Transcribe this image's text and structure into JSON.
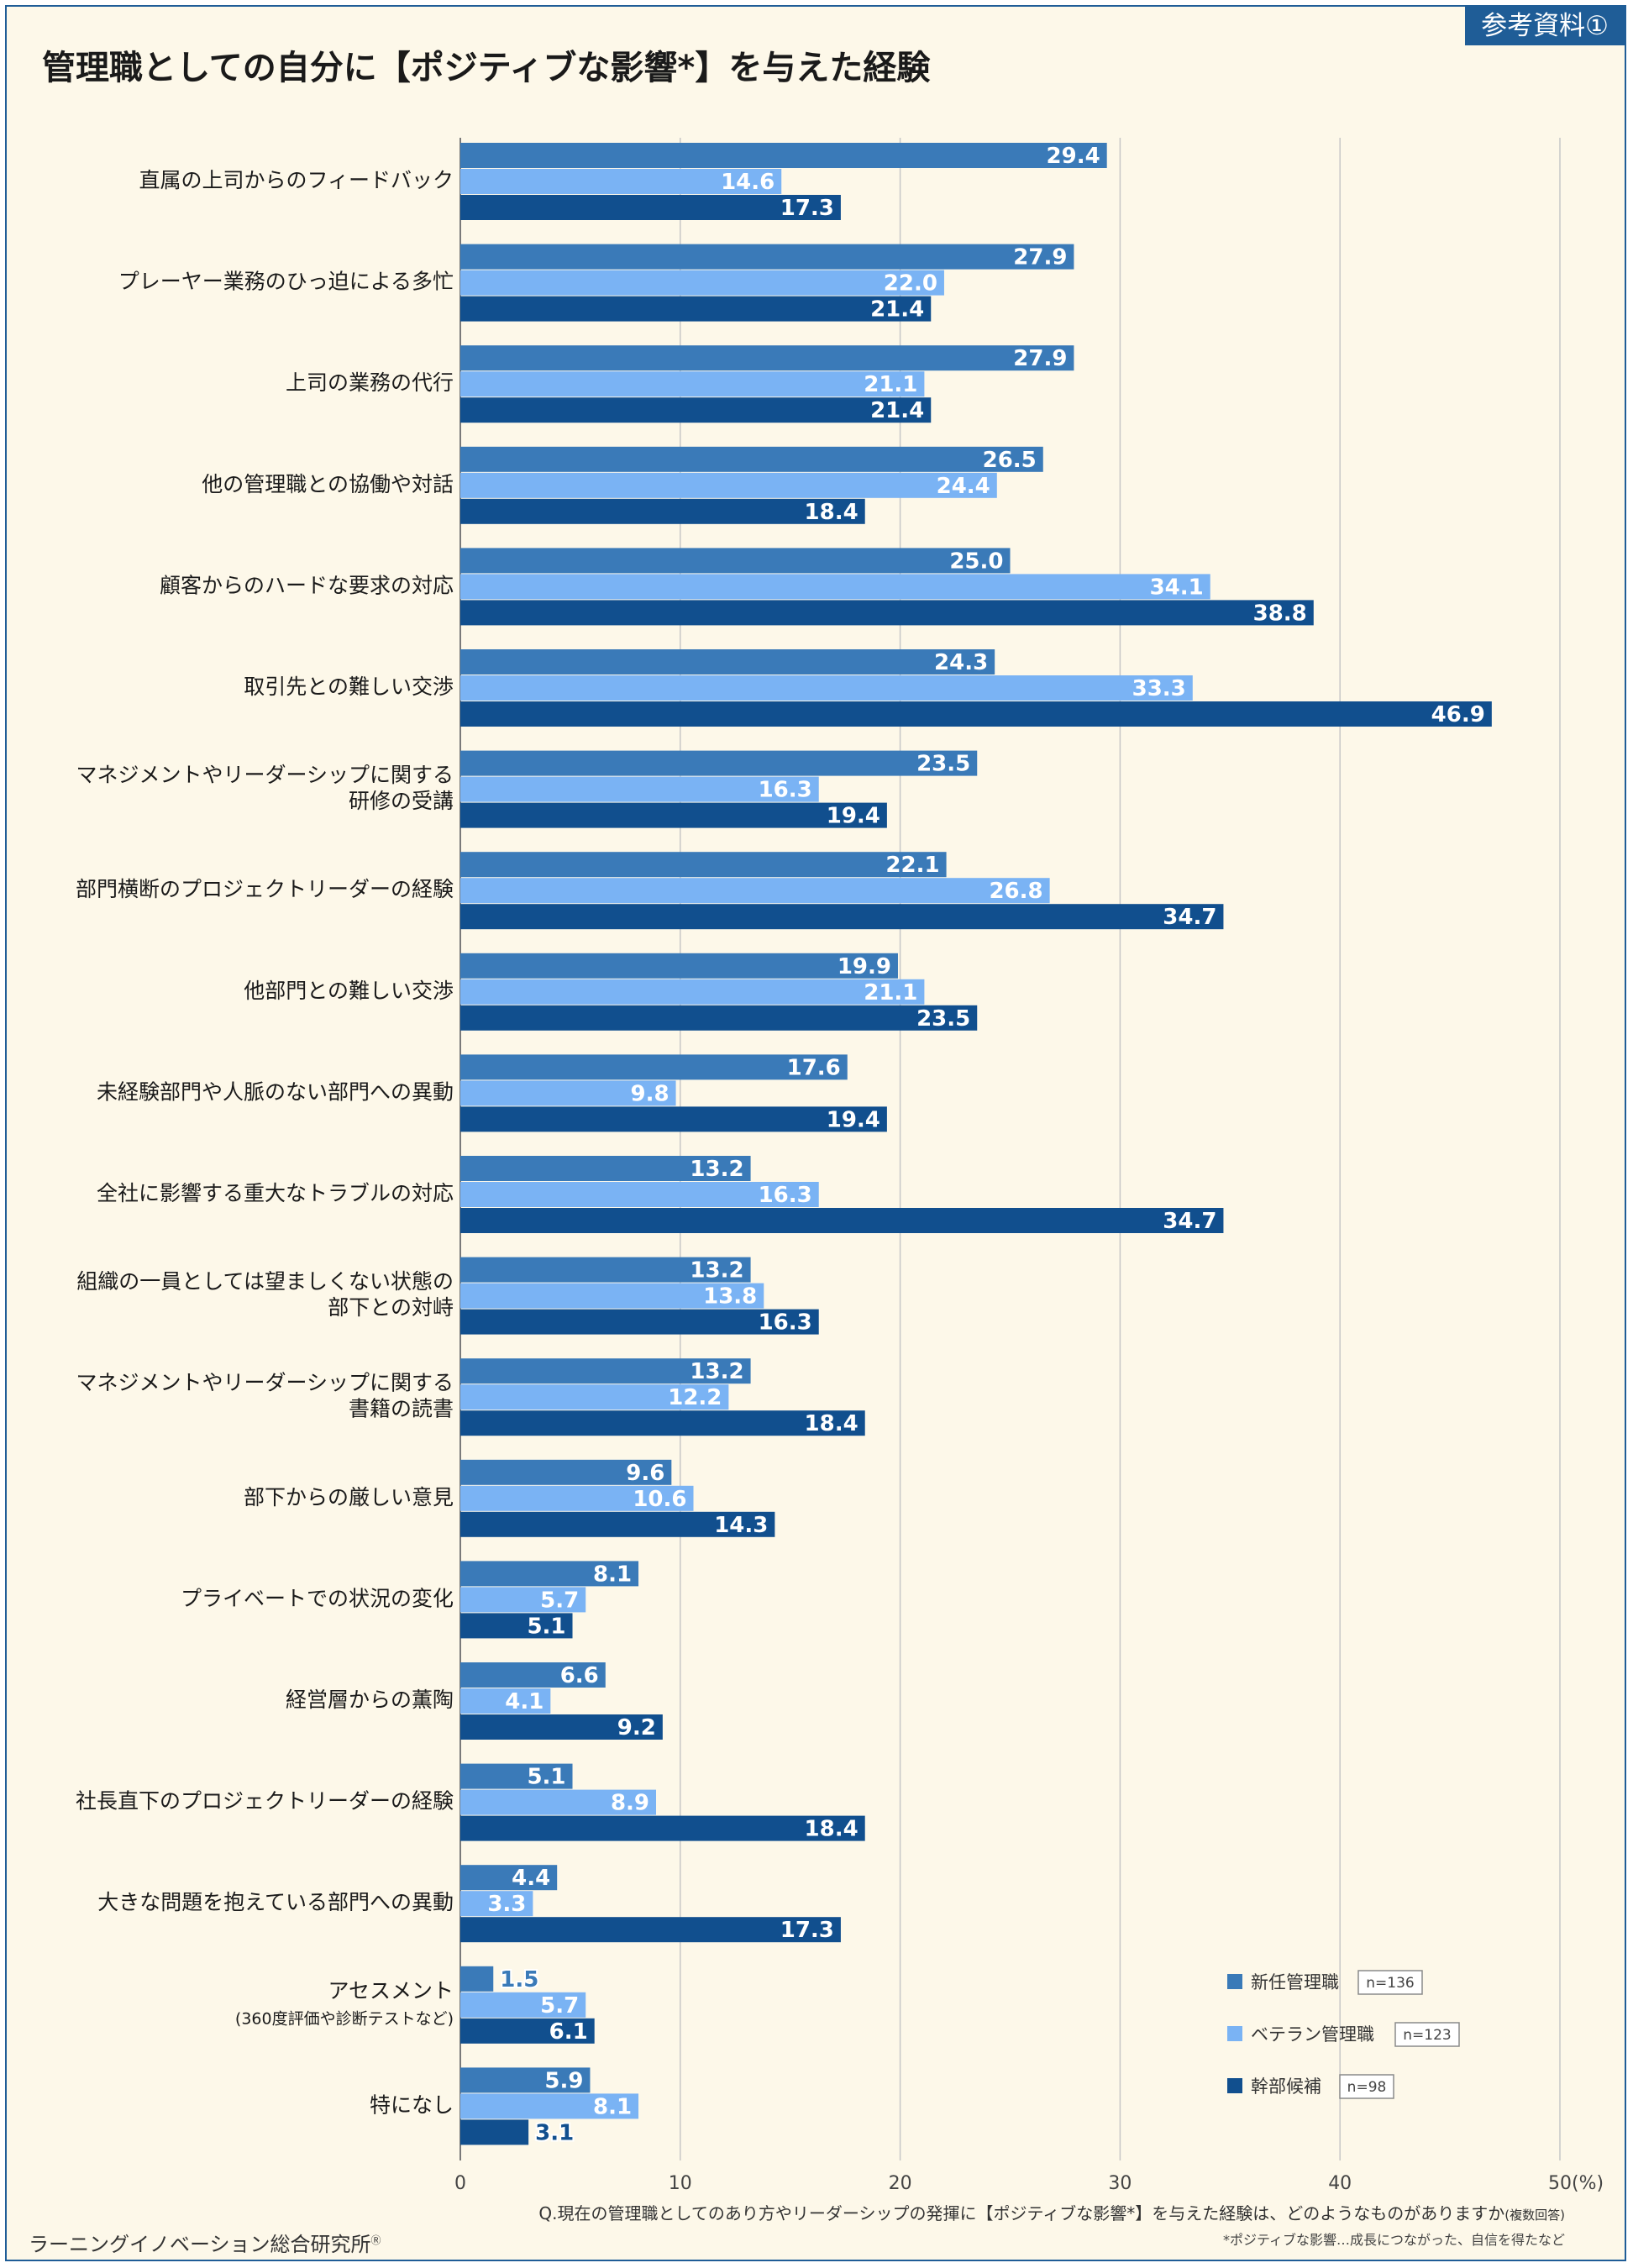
{
  "badge": "参考資料①",
  "title": "管理職としての自分に【ポジティブな影響*】を与えた経験",
  "colors": {
    "s1": "#3a7ab8",
    "s2": "#7ab3f4",
    "s3": "#114f8e",
    "grid": "#c7c7c7",
    "axis": "#7a7a7a",
    "background": "#fdf8e9",
    "accent": "#1f5d97"
  },
  "legend": {
    "items": [
      {
        "name": "新任管理職",
        "n": "n=136"
      },
      {
        "name": "ベテラン管理職",
        "n": "n=123"
      },
      {
        "name": "幹部候補",
        "n": "n=98"
      }
    ]
  },
  "question": "Q.現在の管理職としてのあり方やリーダーシップの発揮に【ポジティブな影響*】を与えた経験は、どのようなものがありますか",
  "question_note": "(複数回答)",
  "footnote": "*ポジティブな影響…成長につながった、自信を得たなど",
  "company": "ラーニングイノベーション総合研究所",
  "company_mark": "Ⓡ",
  "chart_data": {
    "type": "bar",
    "orientation": "horizontal",
    "unit": "%",
    "xlim": [
      0,
      50
    ],
    "ticks": [
      "0",
      "10",
      "20",
      "30",
      "40",
      "50(%)"
    ],
    "grid": true,
    "legend_position": "bottom-right",
    "categories": [
      [
        "直属の上司からのフィードバック"
      ],
      [
        "プレーヤー業務のひっ迫による多忙"
      ],
      [
        "上司の業務の代行"
      ],
      [
        "他の管理職との協働や対話"
      ],
      [
        "顧客からのハードな要求の対応"
      ],
      [
        "取引先との難しい交渉"
      ],
      [
        "マネジメントやリーダーシップに関する",
        "研修の受講"
      ],
      [
        "部門横断のプロジェクトリーダーの経験"
      ],
      [
        "他部門との難しい交渉"
      ],
      [
        "未経験部門や人脈のない部門への異動"
      ],
      [
        "全社に影響する重大なトラブルの対応"
      ],
      [
        "組織の一員としては望ましくない状態の",
        "部下との対峙"
      ],
      [
        "マネジメントやリーダーシップに関する",
        "書籍の読書"
      ],
      [
        "部下からの厳しい意見"
      ],
      [
        "プライベートでの状況の変化"
      ],
      [
        "経営層からの薫陶"
      ],
      [
        "社長直下のプロジェクトリーダーの経験"
      ],
      [
        "大きな問題を抱えている部門への異動"
      ],
      [
        "アセスメント",
        "(360度評価や診断テストなど)"
      ],
      [
        "特になし"
      ]
    ],
    "series": [
      {
        "name": "新任管理職",
        "values": [
          29.4,
          27.9,
          27.9,
          26.5,
          25.0,
          24.3,
          23.5,
          22.1,
          19.9,
          17.6,
          13.2,
          13.2,
          13.2,
          9.6,
          8.1,
          6.6,
          5.1,
          4.4,
          1.5,
          5.9
        ]
      },
      {
        "name": "ベテラン管理職",
        "values": [
          14.6,
          22.0,
          21.1,
          24.4,
          34.1,
          33.3,
          16.3,
          26.8,
          21.1,
          9.8,
          16.3,
          13.8,
          12.2,
          10.6,
          5.7,
          4.1,
          8.9,
          3.3,
          5.7,
          8.1
        ]
      },
      {
        "name": "幹部候補",
        "values": [
          17.3,
          21.4,
          21.4,
          18.4,
          38.8,
          46.9,
          19.4,
          34.7,
          23.5,
          19.4,
          34.7,
          16.3,
          18.4,
          14.3,
          5.1,
          9.2,
          18.4,
          17.3,
          6.1,
          3.1
        ]
      }
    ]
  }
}
